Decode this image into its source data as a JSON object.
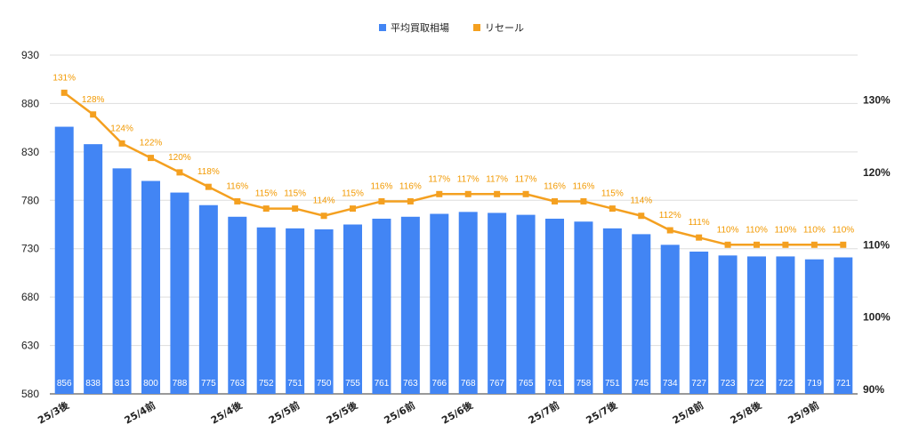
{
  "colors": {
    "bar": "#4285f4",
    "line": "#f4a020",
    "label_text": "#f29900",
    "grid": "#dddddd"
  },
  "chart_data": {
    "type": "bar",
    "title": "",
    "xlabel": "",
    "ylabel": "",
    "ylim": [
      580,
      930
    ],
    "y_ticks": [
      580,
      630,
      680,
      730,
      780,
      830,
      880,
      930
    ],
    "y2lim": [
      89.4,
      136.2
    ],
    "y2_ticks": [
      "90%",
      "100%",
      "110%",
      "120%",
      "130%"
    ],
    "y2_tick_values": [
      90,
      100,
      110,
      120,
      130
    ],
    "legend": {
      "placement": "top-center",
      "entries": [
        {
          "name": "平均買取相場",
          "color": "#4285f4"
        },
        {
          "name": "リセール",
          "color": "#f4a020"
        }
      ]
    },
    "x_tick_labels": [
      {
        "index": 0,
        "label": "25/3後"
      },
      {
        "index": 3,
        "label": "25/4前"
      },
      {
        "index": 6,
        "label": "25/4後"
      },
      {
        "index": 8,
        "label": "25/5前"
      },
      {
        "index": 10,
        "label": "25/5後"
      },
      {
        "index": 12,
        "label": "25/6前"
      },
      {
        "index": 14,
        "label": "25/6後"
      },
      {
        "index": 17,
        "label": "25/7前"
      },
      {
        "index": 19,
        "label": "25/7後"
      },
      {
        "index": 22,
        "label": "25/8前"
      },
      {
        "index": 24,
        "label": "25/8後"
      },
      {
        "index": 26,
        "label": "25/9前"
      }
    ],
    "series": [
      {
        "name": "平均買取相場",
        "type": "bar",
        "axis": "left",
        "values": [
          856,
          838,
          813,
          800,
          788,
          775,
          763,
          752,
          751,
          750,
          755,
          761,
          763,
          766,
          768,
          767,
          765,
          761,
          758,
          751,
          745,
          734,
          727,
          723,
          722,
          722,
          719,
          721
        ]
      },
      {
        "name": "リセール",
        "type": "line",
        "axis": "right",
        "values": [
          131,
          128,
          124,
          122,
          120,
          118,
          116,
          115,
          115,
          114,
          115,
          116,
          116,
          117,
          117,
          117,
          117,
          116,
          116,
          115,
          114,
          112,
          111,
          110,
          110,
          110,
          110,
          110
        ],
        "labels": [
          "131%",
          "128%",
          "124%",
          "122%",
          "120%",
          "118%",
          "116%",
          "115%",
          "115%",
          "114%",
          "115%",
          "116%",
          "116%",
          "117%",
          "117%",
          "117%",
          "117%",
          "116%",
          "116%",
          "115%",
          "114%",
          "112%",
          "111%",
          "110%",
          "110%",
          "110%",
          "110%",
          "110%"
        ]
      }
    ],
    "grid": true
  }
}
